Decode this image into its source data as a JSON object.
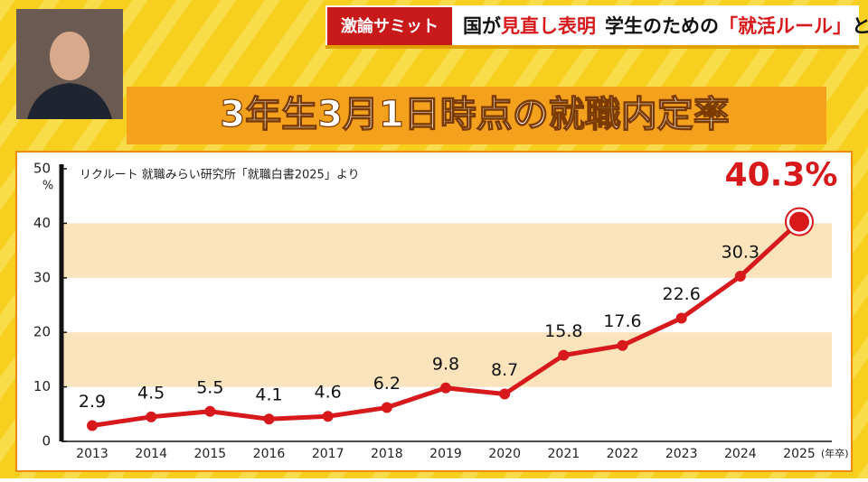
{
  "header": {
    "logo": "激論サミット",
    "headline_parts": [
      "国が",
      "見直し表明",
      "学生のための",
      "「就活ルール」",
      "とは"
    ]
  },
  "chart_data": {
    "type": "line",
    "title": "3年生3月1日時点の就職内定率",
    "source": "リクルート 就職みらい研究所「就職白書2025」より",
    "y_unit": "%",
    "x_unit": "(年卒)",
    "categories": [
      "2013",
      "2014",
      "2015",
      "2016",
      "2017",
      "2018",
      "2019",
      "2020",
      "2021",
      "2022",
      "2023",
      "2024",
      "2025"
    ],
    "values": [
      2.9,
      4.5,
      5.5,
      4.1,
      4.6,
      6.2,
      9.8,
      8.7,
      15.8,
      17.6,
      22.6,
      30.3,
      40.3
    ],
    "value_labels": [
      "2.9",
      "4.5",
      "5.5",
      "4.1",
      "4.6",
      "6.2",
      "9.8",
      "8.7",
      "15.8",
      "17.6",
      "22.6",
      "30.3",
      "40.3%"
    ],
    "color": "#d7191c",
    "ylim": [
      0,
      50
    ],
    "yticks": [
      0,
      10,
      20,
      30,
      40,
      50
    ],
    "grid": true
  }
}
